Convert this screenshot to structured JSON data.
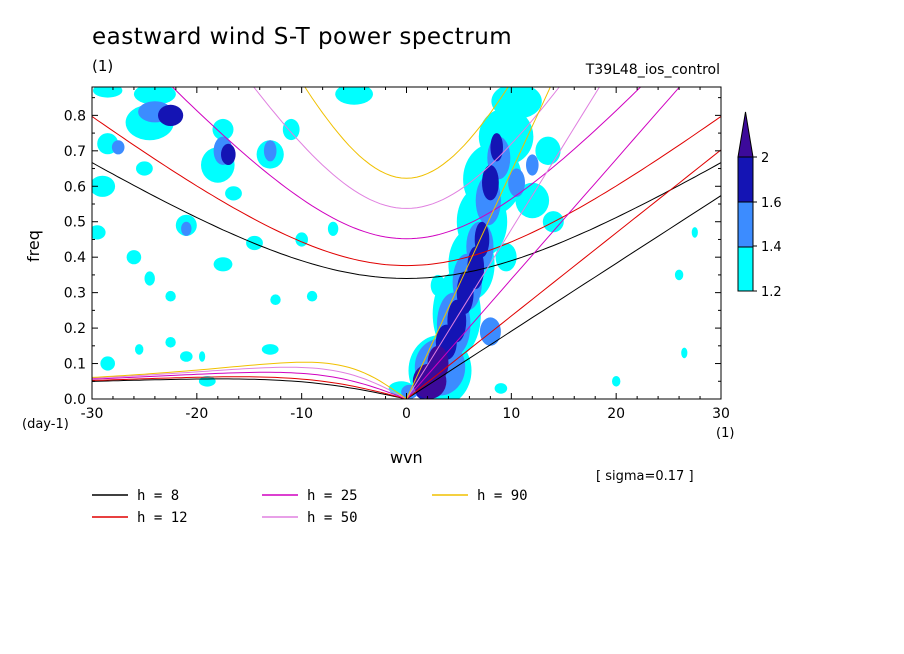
{
  "header": {
    "title": "eastward wind S-T power spectrum",
    "subunit": "(1)",
    "run_name": "T39L48_ios_control"
  },
  "axes": {
    "xlabel": "wvn",
    "ylabel": "freq",
    "yunit": "(day-1)",
    "xunit": "(1)"
  },
  "note": "[ sigma=0.17 ]",
  "colors": {
    "level_1_2": "#00ffff",
    "level_1_4": "#3c8cff",
    "level_1_6": "#1414b4",
    "level_2": "#3c0a9a",
    "h8": "#000000",
    "h12": "#e00000",
    "h25": "#d000c0",
    "h50": "#e080e0",
    "h90": "#f0c000"
  },
  "colorbar": {
    "labels": [
      "2",
      "1.6",
      "1.4",
      "1.2"
    ]
  },
  "legend": [
    {
      "id": "h8",
      "label": "h =  8",
      "color": "#000000"
    },
    {
      "id": "h12",
      "label": "h = 12",
      "color": "#e00000"
    },
    {
      "id": "h25",
      "label": "h = 25",
      "color": "#d000c0"
    },
    {
      "id": "h50",
      "label": "h = 50",
      "color": "#e080e0"
    },
    {
      "id": "h90",
      "label": "h = 90",
      "color": "#f0c000"
    }
  ],
  "chart_data": {
    "type": "heatmap",
    "title": "eastward wind S-T power spectrum",
    "xlabel": "wvn",
    "ylabel": "freq",
    "xlim": [
      -30,
      30
    ],
    "ylim": [
      0,
      0.88
    ],
    "xticks": [
      -30,
      -20,
      -10,
      0,
      10,
      20,
      30
    ],
    "yticks": [
      0.0,
      0.1,
      0.2,
      0.3,
      0.4,
      0.5,
      0.6,
      0.7,
      0.8
    ],
    "xtick_labels": [
      "-30",
      "-20",
      "-10",
      "0",
      "10",
      "20",
      "30"
    ],
    "ytick_labels": [
      "0.0",
      "0.1",
      "0.2",
      "0.3",
      "0.4",
      "0.5",
      "0.6",
      "0.7",
      "0.8"
    ],
    "contour_levels": [
      1.2,
      1.4,
      1.6,
      2
    ],
    "equivalent_depths": [
      8,
      12,
      25,
      50,
      90
    ],
    "kelvin_wave_lines": [
      {
        "h": 8,
        "points": [
          [
            0,
            0
          ],
          [
            30,
            0.57
          ]
        ]
      },
      {
        "h": 12,
        "points": [
          [
            0,
            0
          ],
          [
            30,
            0.69
          ]
        ]
      },
      {
        "h": 25,
        "points": [
          [
            0,
            0
          ],
          [
            26,
            0.88
          ]
        ]
      },
      {
        "h": 50,
        "points": [
          [
            0,
            0
          ],
          [
            18,
            0.88
          ]
        ]
      },
      {
        "h": 90,
        "points": [
          [
            0,
            0
          ],
          [
            14,
            0.88
          ]
        ]
      }
    ],
    "power_blobs": [
      {
        "x": 2.2,
        "y": 0.05,
        "rx": 1.6,
        "ry": 0.05,
        "level": 2
      },
      {
        "x": 3.0,
        "y": 0.1,
        "rx": 1.0,
        "ry": 0.05,
        "level": 2
      },
      {
        "x": 1.5,
        "y": 0.02,
        "rx": 0.6,
        "ry": 0.02,
        "level": 1.6
      },
      {
        "x": 3.8,
        "y": 0.16,
        "rx": 1.0,
        "ry": 0.05,
        "level": 1.6
      },
      {
        "x": 4.8,
        "y": 0.22,
        "rx": 0.9,
        "ry": 0.06,
        "level": 1.6
      },
      {
        "x": 5.6,
        "y": 0.3,
        "rx": 0.8,
        "ry": 0.06,
        "level": 1.6
      },
      {
        "x": 6.6,
        "y": 0.37,
        "rx": 0.8,
        "ry": 0.06,
        "level": 1.6
      },
      {
        "x": 7.2,
        "y": 0.45,
        "rx": 0.7,
        "ry": 0.05,
        "level": 1.6
      },
      {
        "x": 8.0,
        "y": 0.61,
        "rx": 0.8,
        "ry": 0.05,
        "level": 1.6
      },
      {
        "x": 8.6,
        "y": 0.71,
        "rx": 0.6,
        "ry": 0.04,
        "level": 1.6
      },
      {
        "x": -22.5,
        "y": 0.8,
        "rx": 1.2,
        "ry": 0.03,
        "level": 1.6
      },
      {
        "x": -17.0,
        "y": 0.69,
        "rx": 0.7,
        "ry": 0.03,
        "level": 1.6
      },
      {
        "x": 0.3,
        "y": 0.02,
        "rx": 0.8,
        "ry": 0.02,
        "level": 1.4
      },
      {
        "x": 3.2,
        "y": 0.09,
        "rx": 2.4,
        "ry": 0.08,
        "level": 1.4
      },
      {
        "x": 4.5,
        "y": 0.21,
        "rx": 1.6,
        "ry": 0.09,
        "level": 1.4
      },
      {
        "x": 5.8,
        "y": 0.33,
        "rx": 1.4,
        "ry": 0.08,
        "level": 1.4
      },
      {
        "x": 7.0,
        "y": 0.43,
        "rx": 1.3,
        "ry": 0.07,
        "level": 1.4
      },
      {
        "x": 7.8,
        "y": 0.56,
        "rx": 1.2,
        "ry": 0.07,
        "level": 1.4
      },
      {
        "x": 8.8,
        "y": 0.68,
        "rx": 1.1,
        "ry": 0.06,
        "level": 1.4
      },
      {
        "x": 10.5,
        "y": 0.61,
        "rx": 0.8,
        "ry": 0.04,
        "level": 1.4
      },
      {
        "x": 8.0,
        "y": 0.19,
        "rx": 1.0,
        "ry": 0.04,
        "level": 1.4
      },
      {
        "x": -24.0,
        "y": 0.81,
        "rx": 1.6,
        "ry": 0.03,
        "level": 1.4
      },
      {
        "x": -27.5,
        "y": 0.71,
        "rx": 0.6,
        "ry": 0.02,
        "level": 1.4
      },
      {
        "x": -21.0,
        "y": 0.48,
        "rx": 0.5,
        "ry": 0.02,
        "level": 1.4
      },
      {
        "x": -17.5,
        "y": 0.7,
        "rx": 0.9,
        "ry": 0.04,
        "level": 1.4
      },
      {
        "x": -13.0,
        "y": 0.7,
        "rx": 0.6,
        "ry": 0.03,
        "level": 1.4
      },
      {
        "x": 12.0,
        "y": 0.66,
        "rx": 0.6,
        "ry": 0.03,
        "level": 1.4
      },
      {
        "x": 3.2,
        "y": 0.08,
        "rx": 3.0,
        "ry": 0.1,
        "level": 1.2
      },
      {
        "x": 4.8,
        "y": 0.24,
        "rx": 2.3,
        "ry": 0.12,
        "level": 1.2
      },
      {
        "x": 6.2,
        "y": 0.38,
        "rx": 2.2,
        "ry": 0.1,
        "level": 1.2
      },
      {
        "x": 7.2,
        "y": 0.5,
        "rx": 2.4,
        "ry": 0.1,
        "level": 1.2
      },
      {
        "x": 8.2,
        "y": 0.62,
        "rx": 2.8,
        "ry": 0.1,
        "level": 1.2
      },
      {
        "x": 9.5,
        "y": 0.74,
        "rx": 2.6,
        "ry": 0.08,
        "level": 1.2
      },
      {
        "x": 10.5,
        "y": 0.84,
        "rx": 2.4,
        "ry": 0.05,
        "level": 1.2
      },
      {
        "x": 12.0,
        "y": 0.56,
        "rx": 1.6,
        "ry": 0.05,
        "level": 1.2
      },
      {
        "x": 13.5,
        "y": 0.7,
        "rx": 1.2,
        "ry": 0.04,
        "level": 1.2
      },
      {
        "x": 14.0,
        "y": 0.5,
        "rx": 1.0,
        "ry": 0.03,
        "level": 1.2
      },
      {
        "x": 9.5,
        "y": 0.4,
        "rx": 1.0,
        "ry": 0.04,
        "level": 1.2
      },
      {
        "x": 3.0,
        "y": 0.32,
        "rx": 0.7,
        "ry": 0.03,
        "level": 1.2
      },
      {
        "x": -0.5,
        "y": 0.03,
        "rx": 1.2,
        "ry": 0.02,
        "level": 1.2
      },
      {
        "x": -28.5,
        "y": 0.87,
        "rx": 1.4,
        "ry": 0.02,
        "level": 1.2
      },
      {
        "x": -24.0,
        "y": 0.86,
        "rx": 2.0,
        "ry": 0.03,
        "level": 1.2
      },
      {
        "x": -24.5,
        "y": 0.78,
        "rx": 2.3,
        "ry": 0.05,
        "level": 1.2
      },
      {
        "x": -28.5,
        "y": 0.72,
        "rx": 1.0,
        "ry": 0.03,
        "level": 1.2
      },
      {
        "x": -29.0,
        "y": 0.6,
        "rx": 1.2,
        "ry": 0.03,
        "level": 1.2
      },
      {
        "x": -29.5,
        "y": 0.47,
        "rx": 0.8,
        "ry": 0.02,
        "level": 1.2
      },
      {
        "x": -25.0,
        "y": 0.65,
        "rx": 0.8,
        "ry": 0.02,
        "level": 1.2
      },
      {
        "x": -21.0,
        "y": 0.49,
        "rx": 1.0,
        "ry": 0.03,
        "level": 1.2
      },
      {
        "x": -18.0,
        "y": 0.66,
        "rx": 1.6,
        "ry": 0.05,
        "level": 1.2
      },
      {
        "x": -17.5,
        "y": 0.76,
        "rx": 1.0,
        "ry": 0.03,
        "level": 1.2
      },
      {
        "x": -13.0,
        "y": 0.69,
        "rx": 1.3,
        "ry": 0.04,
        "level": 1.2
      },
      {
        "x": -11.0,
        "y": 0.76,
        "rx": 0.8,
        "ry": 0.03,
        "level": 1.2
      },
      {
        "x": -5.0,
        "y": 0.86,
        "rx": 1.8,
        "ry": 0.03,
        "level": 1.2
      },
      {
        "x": -16.5,
        "y": 0.58,
        "rx": 0.8,
        "ry": 0.02,
        "level": 1.2
      },
      {
        "x": -14.5,
        "y": 0.44,
        "rx": 0.8,
        "ry": 0.02,
        "level": 1.2
      },
      {
        "x": -10.0,
        "y": 0.45,
        "rx": 0.6,
        "ry": 0.02,
        "level": 1.2
      },
      {
        "x": -7.0,
        "y": 0.48,
        "rx": 0.5,
        "ry": 0.02,
        "level": 1.2
      },
      {
        "x": -17.5,
        "y": 0.38,
        "rx": 0.9,
        "ry": 0.02,
        "level": 1.2
      },
      {
        "x": -26.0,
        "y": 0.4,
        "rx": 0.7,
        "ry": 0.02,
        "level": 1.2
      },
      {
        "x": -24.5,
        "y": 0.34,
        "rx": 0.5,
        "ry": 0.02,
        "level": 1.2
      },
      {
        "x": -12.5,
        "y": 0.28,
        "rx": 0.5,
        "ry": 0.015,
        "level": 1.2
      },
      {
        "x": -9.0,
        "y": 0.29,
        "rx": 0.5,
        "ry": 0.015,
        "level": 1.2
      },
      {
        "x": -28.5,
        "y": 0.1,
        "rx": 0.7,
        "ry": 0.02,
        "level": 1.2
      },
      {
        "x": -19.0,
        "y": 0.05,
        "rx": 0.8,
        "ry": 0.015,
        "level": 1.2
      },
      {
        "x": -21.0,
        "y": 0.12,
        "rx": 0.6,
        "ry": 0.015,
        "level": 1.2
      },
      {
        "x": -13.0,
        "y": 0.14,
        "rx": 0.8,
        "ry": 0.015,
        "level": 1.2
      },
      {
        "x": -22.5,
        "y": 0.16,
        "rx": 0.5,
        "ry": 0.015,
        "level": 1.2
      },
      {
        "x": -25.5,
        "y": 0.14,
        "rx": 0.4,
        "ry": 0.015,
        "level": 1.2
      },
      {
        "x": -19.5,
        "y": 0.12,
        "rx": 0.3,
        "ry": 0.015,
        "level": 1.2
      },
      {
        "x": -22.5,
        "y": 0.29,
        "rx": 0.5,
        "ry": 0.015,
        "level": 1.2
      },
      {
        "x": 9.0,
        "y": 0.03,
        "rx": 0.6,
        "ry": 0.015,
        "level": 1.2
      },
      {
        "x": 26.0,
        "y": 0.35,
        "rx": 0.4,
        "ry": 0.015,
        "level": 1.2
      },
      {
        "x": 26.5,
        "y": 0.13,
        "rx": 0.3,
        "ry": 0.015,
        "level": 1.2
      },
      {
        "x": 20.0,
        "y": 0.05,
        "rx": 0.4,
        "ry": 0.015,
        "level": 1.2
      },
      {
        "x": 27.5,
        "y": 0.47,
        "rx": 0.3,
        "ry": 0.015,
        "level": 1.2
      }
    ]
  }
}
